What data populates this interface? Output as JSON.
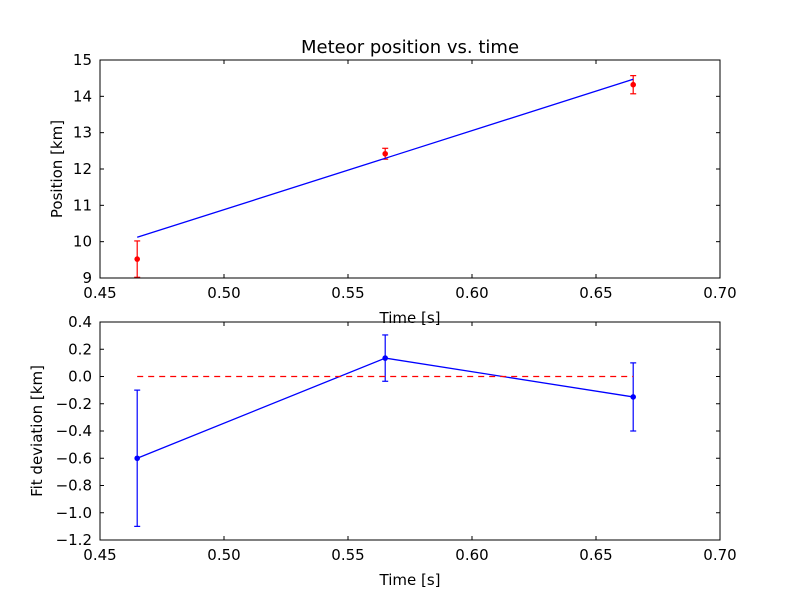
{
  "chart_data": [
    {
      "type": "scatter",
      "title": "Meteor position vs. time",
      "xlabel": "Time [s]",
      "ylabel": "Position [km]",
      "xlim": [
        0.45,
        0.7
      ],
      "ylim": [
        9,
        15
      ],
      "xticks": [
        "0.45",
        "0.50",
        "0.55",
        "0.60",
        "0.65",
        "0.70"
      ],
      "yticks": [
        "9",
        "10",
        "11",
        "12",
        "13",
        "14",
        "15"
      ],
      "grid": false,
      "series": [
        {
          "kind": "errorbar-points",
          "color": "#ff0000",
          "x": [
            0.465,
            0.565,
            0.665
          ],
          "y": [
            9.52,
            12.42,
            14.32
          ],
          "yerr": [
            0.5,
            0.15,
            0.25
          ]
        },
        {
          "kind": "fit-line",
          "color": "#0000ff",
          "x": [
            0.465,
            0.665
          ],
          "y": [
            10.12,
            14.47
          ]
        }
      ]
    },
    {
      "type": "line",
      "title": "",
      "xlabel": "Time [s]",
      "ylabel": "Fit deviation [km]",
      "xlim": [
        0.45,
        0.7
      ],
      "ylim": [
        -1.2,
        0.4
      ],
      "xticks": [
        "0.45",
        "0.50",
        "0.55",
        "0.60",
        "0.65",
        "0.70"
      ],
      "yticks": [
        "0.4",
        "0.2",
        "0.0",
        "−0.2",
        "−0.4",
        "−0.6",
        "−0.8",
        "−1.0",
        "−1.2"
      ],
      "grid": false,
      "series": [
        {
          "kind": "errorbar-line",
          "color": "#0000ff",
          "x": [
            0.465,
            0.565,
            0.665
          ],
          "y": [
            -0.6,
            0.135,
            -0.15
          ],
          "yerr": [
            0.5,
            0.17,
            0.25
          ]
        },
        {
          "kind": "zero-reference",
          "color": "#ff0000",
          "style": "dashed",
          "x": [
            0.465,
            0.665
          ],
          "y": [
            0.0,
            0.0
          ]
        }
      ]
    }
  ]
}
